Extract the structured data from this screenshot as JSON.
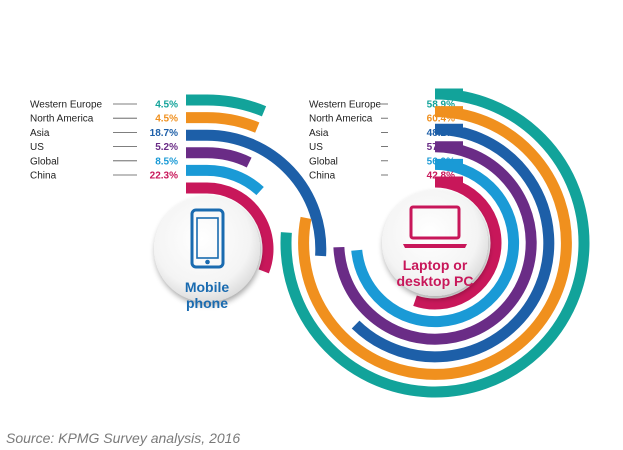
{
  "source": "Source: KPMG Survey analysis, 2016",
  "chart_data": [
    {
      "type": "radial_bar",
      "center_label": [
        "Mobile",
        "phone"
      ],
      "icon": "mobile-phone-icon",
      "label_color": "#1a6bb0",
      "series": [
        {
          "name": "Western Europe",
          "value": 4.5,
          "label": "4.5%",
          "color": "#12a39a"
        },
        {
          "name": "North America",
          "value": 4.5,
          "label": "4.5%",
          "color": "#f0901e"
        },
        {
          "name": "Asia",
          "value": 18.7,
          "label": "18.7%",
          "color": "#1d5fa8"
        },
        {
          "name": "US",
          "value": 5.2,
          "label": "5.2%",
          "color": "#6a2c86"
        },
        {
          "name": "Global",
          "value": 8.5,
          "label": "8.5%",
          "color": "#1a9ad6"
        },
        {
          "name": "China",
          "value": 22.3,
          "label": "22.3%",
          "color": "#c8175a"
        }
      ]
    },
    {
      "type": "radial_bar",
      "center_label": [
        "Laptop or",
        "desktop PC"
      ],
      "icon": "laptop-icon",
      "label_color": "#c8175a",
      "series": [
        {
          "name": "Western Europe",
          "value": 58.9,
          "label": "58.9%",
          "color": "#12a39a"
        },
        {
          "name": "North America",
          "value": 60.4,
          "label": "60.4%",
          "color": "#f0901e"
        },
        {
          "name": "Asia",
          "value": 48.2,
          "label": "48.2%",
          "color": "#1d5fa8"
        },
        {
          "name": "US",
          "value": 57.5,
          "label": "57.5%",
          "color": "#6a2c86"
        },
        {
          "name": "Global",
          "value": 56.9,
          "label": "56.9%",
          "color": "#1a9ad6"
        },
        {
          "name": "China",
          "value": 42.8,
          "label": "42.8%",
          "color": "#c8175a"
        }
      ]
    }
  ]
}
